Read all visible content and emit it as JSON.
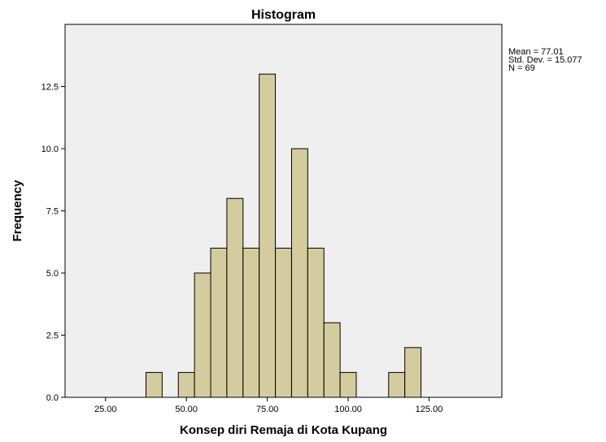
{
  "chart_data": {
    "type": "bar",
    "title": "Histogram",
    "xlabel": "Konsep diri Remaja di Kota Kupang",
    "ylabel": "Frequency",
    "x_ticks": [
      "25.00",
      "50.00",
      "75.00",
      "100.00",
      "125.00"
    ],
    "x_tick_values": [
      25,
      50,
      75,
      100,
      125
    ],
    "y_ticks": [
      "0.0",
      "2.5",
      "5.0",
      "7.5",
      "10.0",
      "12.5"
    ],
    "y_tick_values": [
      0,
      2.5,
      5,
      7.5,
      10,
      12.5
    ],
    "xlim": [
      12.5,
      147.5
    ],
    "ylim": [
      0,
      15
    ],
    "bin_width": 5,
    "bins": [
      {
        "start": 37.5,
        "end": 42.5,
        "count": 1
      },
      {
        "start": 47.5,
        "end": 52.5,
        "count": 1
      },
      {
        "start": 52.5,
        "end": 57.5,
        "count": 5
      },
      {
        "start": 57.5,
        "end": 62.5,
        "count": 6
      },
      {
        "start": 62.5,
        "end": 67.5,
        "count": 8
      },
      {
        "start": 67.5,
        "end": 72.5,
        "count": 6
      },
      {
        "start": 72.5,
        "end": 77.5,
        "count": 13
      },
      {
        "start": 77.5,
        "end": 82.5,
        "count": 6
      },
      {
        "start": 82.5,
        "end": 87.5,
        "count": 10
      },
      {
        "start": 87.5,
        "end": 92.5,
        "count": 6
      },
      {
        "start": 92.5,
        "end": 97.5,
        "count": 3
      },
      {
        "start": 97.5,
        "end": 102.5,
        "count": 1
      },
      {
        "start": 112.5,
        "end": 117.5,
        "count": 1
      },
      {
        "start": 117.5,
        "end": 122.5,
        "count": 2
      }
    ],
    "stats": [
      "Mean = 77.01",
      "Std. Dev. = 15.077",
      "N = 69"
    ],
    "grid": false,
    "legend": "top-right",
    "colors": {
      "bar_fill": "#d4cc9e",
      "bar_stroke": "#000000",
      "plot_background": "#efefef",
      "page_background": "#ffffff"
    }
  }
}
